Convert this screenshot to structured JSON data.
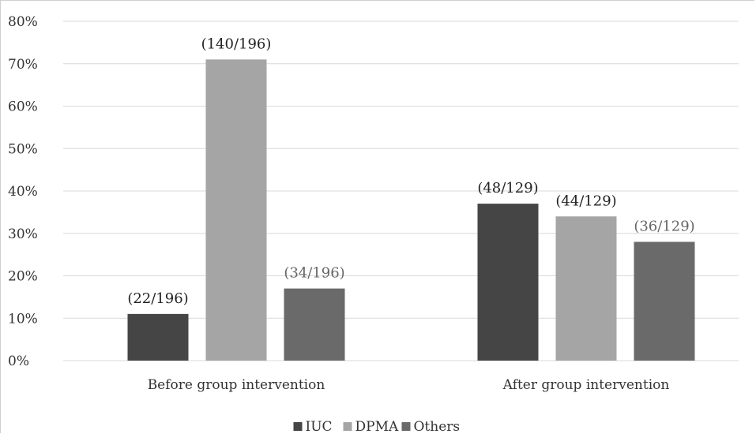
{
  "chart_data": {
    "type": "bar",
    "categories": [
      "Before group intervention",
      "After group intervention"
    ],
    "series": [
      {
        "name": "IUC",
        "values": [
          11,
          37
        ],
        "labels": [
          "(22/196)",
          "(48/129)"
        ],
        "color": "#454545"
      },
      {
        "name": "DPMA",
        "values": [
          71,
          34
        ],
        "labels": [
          "(140/196)",
          "(44/129)"
        ],
        "color": "#a5a5a5"
      },
      {
        "name": "Others",
        "values": [
          17,
          28
        ],
        "labels": [
          "(34/196)",
          "(36/129)"
        ],
        "color": "#6a6a6a"
      }
    ],
    "y_ticks": [
      "0%",
      "10%",
      "20%",
      "30%",
      "40%",
      "50%",
      "60%",
      "70%",
      "80%"
    ],
    "ylim": [
      0,
      80
    ],
    "grid": true,
    "legend_position": "bottom",
    "gridline_color": "#d9d9d9",
    "label_colors": [
      "#222222",
      "#222222",
      "#666666"
    ]
  }
}
